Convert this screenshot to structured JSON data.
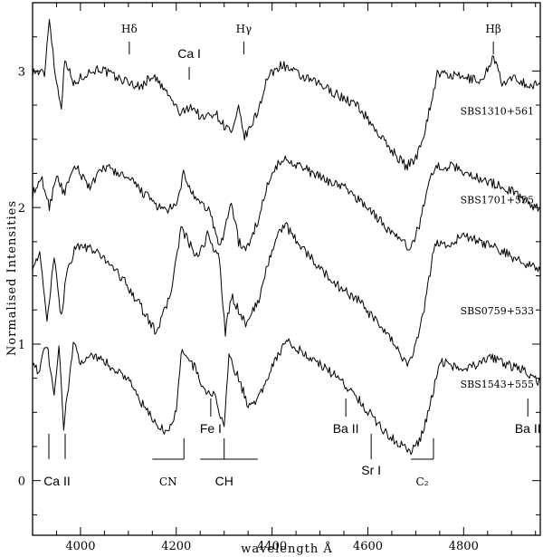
{
  "chart_data": {
    "type": "line",
    "title": "",
    "xlabel": "wavelength Å",
    "ylabel": "Normalised Intensities",
    "xlim": [
      3900,
      4960
    ],
    "ylim": [
      -0.4,
      3.5
    ],
    "xticks": [
      4000,
      4200,
      4400,
      4600,
      4800
    ],
    "yticks": [
      0,
      1,
      2,
      3
    ],
    "series": [
      {
        "name": "SBS1310+561",
        "x": [
          3900,
          3925,
          3935,
          3948,
          3960,
          3968,
          3985,
          4010,
          4040,
          4075,
          4100,
          4125,
          4150,
          4180,
          4210,
          4230,
          4255,
          4280,
          4300,
          4318,
          4330,
          4342,
          4350,
          4370,
          4390,
          4420,
          4460,
          4500,
          4540,
          4580,
          4610,
          4635,
          4660,
          4680,
          4700,
          4720,
          4745,
          4770,
          4800,
          4840,
          4862,
          4880,
          4910,
          4940,
          4960
        ],
        "y": [
          3.0,
          2.98,
          3.4,
          2.95,
          2.75,
          3.1,
          2.9,
          2.98,
          3.02,
          2.95,
          2.92,
          2.88,
          2.97,
          2.84,
          2.68,
          2.75,
          2.65,
          2.7,
          2.6,
          2.55,
          2.72,
          2.52,
          2.55,
          2.7,
          2.95,
          3.05,
          2.96,
          2.9,
          2.82,
          2.74,
          2.6,
          2.48,
          2.38,
          2.3,
          2.36,
          2.58,
          2.98,
          2.97,
          2.95,
          2.93,
          3.12,
          2.9,
          2.95,
          2.88,
          2.92
        ]
      },
      {
        "name": "SBS1701+555",
        "x": [
          3900,
          3920,
          3935,
          3950,
          3965,
          3990,
          4020,
          4050,
          4080,
          4110,
          4140,
          4170,
          4200,
          4215,
          4240,
          4270,
          4290,
          4300,
          4315,
          4330,
          4345,
          4370,
          4400,
          4430,
          4460,
          4500,
          4550,
          4600,
          4640,
          4670,
          4690,
          4710,
          4725,
          4745,
          4780,
          4820,
          4860,
          4900,
          4930,
          4960
        ],
        "y": [
          2.1,
          2.2,
          2.0,
          2.25,
          2.1,
          2.3,
          2.15,
          2.3,
          2.25,
          2.18,
          2.08,
          1.98,
          2.0,
          2.25,
          2.05,
          1.98,
          1.7,
          1.82,
          2.05,
          1.75,
          1.68,
          1.9,
          2.28,
          2.36,
          2.3,
          2.22,
          2.15,
          2.0,
          1.85,
          1.75,
          1.7,
          1.9,
          2.18,
          2.3,
          2.3,
          2.23,
          2.18,
          2.12,
          2.05,
          1.98
        ]
      },
      {
        "name": "SBS0759+533",
        "x": [
          3900,
          3915,
          3930,
          3945,
          3960,
          3970,
          3990,
          4020,
          4060,
          4100,
          4130,
          4155,
          4170,
          4190,
          4210,
          4225,
          4245,
          4265,
          4290,
          4302,
          4315,
          4330,
          4345,
          4370,
          4400,
          4425,
          4460,
          4500,
          4540,
          4580,
          4620,
          4660,
          4680,
          4700,
          4720,
          4740,
          4770,
          4800,
          4830,
          4870,
          4910,
          4960
        ],
        "y": [
          1.58,
          1.65,
          1.18,
          1.62,
          1.2,
          1.5,
          1.72,
          1.7,
          1.6,
          1.42,
          1.25,
          1.1,
          1.18,
          1.4,
          1.85,
          1.75,
          1.62,
          1.8,
          1.62,
          1.08,
          1.35,
          1.25,
          1.15,
          1.3,
          1.7,
          1.88,
          1.72,
          1.55,
          1.42,
          1.32,
          1.15,
          0.98,
          0.85,
          0.98,
          1.3,
          1.75,
          1.72,
          1.8,
          1.75,
          1.7,
          1.62,
          1.55
        ]
      },
      {
        "name": "SBS1543+555",
        "x": [
          3900,
          3912,
          3930,
          3945,
          3955,
          3965,
          3985,
          4000,
          4030,
          4070,
          4100,
          4125,
          4150,
          4180,
          4200,
          4210,
          4240,
          4260,
          4280,
          4300,
          4310,
          4330,
          4350,
          4375,
          4400,
          4430,
          4460,
          4500,
          4540,
          4580,
          4620,
          4660,
          4690,
          4710,
          4730,
          4750,
          4790,
          4830,
          4860,
          4890,
          4930,
          4960
        ],
        "y": [
          0.88,
          0.8,
          1.0,
          0.6,
          0.98,
          0.4,
          1.0,
          0.88,
          0.92,
          0.82,
          0.75,
          0.58,
          0.45,
          0.35,
          0.5,
          0.95,
          0.82,
          0.65,
          0.62,
          0.4,
          0.9,
          0.75,
          0.55,
          0.62,
          0.85,
          1.02,
          0.95,
          0.85,
          0.75,
          0.6,
          0.42,
          0.28,
          0.22,
          0.3,
          0.55,
          0.88,
          0.82,
          0.85,
          0.9,
          0.85,
          0.8,
          0.72
        ]
      }
    ],
    "annotations": {
      "top": [
        {
          "label": "Hδ",
          "x": 4102
        },
        {
          "label": "Ca I",
          "x": 4227
        },
        {
          "label": "Hγ",
          "x": 4341
        },
        {
          "label": "Hβ",
          "x": 4862
        }
      ],
      "mid": [
        {
          "label": "Fe I",
          "x": 4272
        },
        {
          "label": "Ba II",
          "x": 4554
        },
        {
          "label": "Ba II",
          "x": 4934
        }
      ],
      "bottom_lines": [
        {
          "label": "Ca II",
          "x": [
            3934,
            3968
          ]
        },
        {
          "label": "Sr I",
          "x": [
            4607
          ]
        }
      ],
      "bottom_bands": [
        {
          "label": "CN",
          "x0": 4150,
          "x1": 4216
        },
        {
          "label": "CH",
          "x0": 4250,
          "x1": 4370,
          "center": 4300
        },
        {
          "label": "C₂",
          "x0": 4690,
          "x1": 4737
        }
      ]
    }
  }
}
